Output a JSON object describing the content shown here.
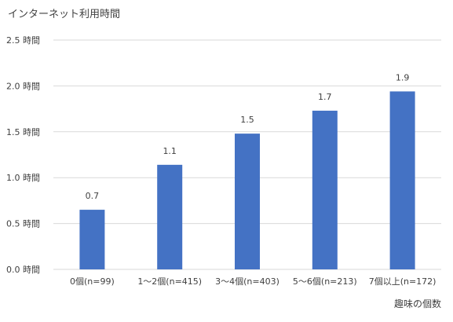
{
  "chart_data": {
    "type": "bar",
    "title": "インターネット利用時間",
    "xlabel": "趣味の個数",
    "ylabel": "",
    "categories": [
      "0個(n=99)",
      "1〜2個(n=415)",
      "3〜4個(n=403)",
      "5〜6個(n=213)",
      "7個以上(n=172)"
    ],
    "values": [
      0.65,
      1.14,
      1.48,
      1.73,
      1.94
    ],
    "value_labels": [
      "0.7",
      "1.1",
      "1.5",
      "1.7",
      "1.9"
    ],
    "ylim": [
      0,
      2.5
    ],
    "yticks": [
      0,
      0.5,
      1.0,
      1.5,
      2.0,
      2.5
    ],
    "ytick_labels": [
      "0.0 時間",
      "0.5 時間",
      "1.0 時間",
      "1.5 時間",
      "2.0 時間",
      "2.5 時間"
    ],
    "grid": true,
    "bar_color": "#4472c4"
  }
}
